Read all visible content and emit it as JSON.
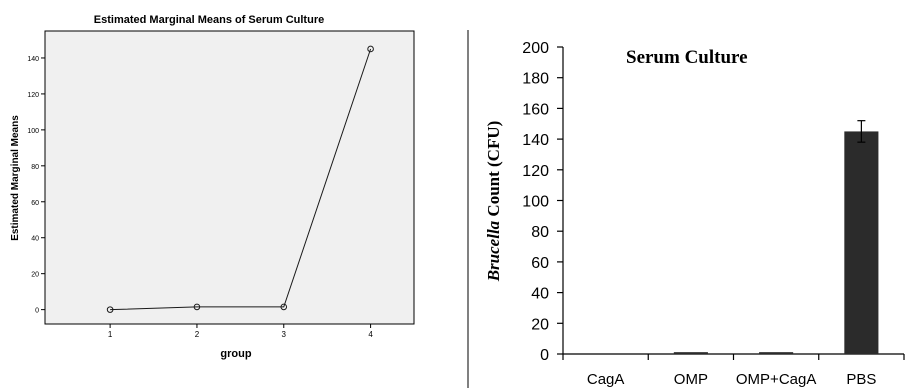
{
  "colors": {
    "left_plot_bg": "#f0f0f0",
    "left_line": "#1a1a1a",
    "right_bar": "#2b2b2b",
    "axis": "#000000"
  },
  "chart_data": [
    {
      "type": "line",
      "title": "Estimated Marginal Means of Serum Culture",
      "xlabel": "group",
      "ylabel": "Estimated Marginal Means",
      "x": [
        1,
        2,
        3,
        4
      ],
      "x_tick_labels": [
        "1",
        "2",
        "3",
        "4"
      ],
      "xlim": [
        0.25,
        4.5
      ],
      "values": [
        0,
        1.5,
        1.5,
        145
      ],
      "ylim": [
        -8,
        155
      ],
      "y_ticks": [
        0,
        20,
        40,
        60,
        80,
        100,
        120,
        140
      ],
      "y_tick_labels": [
        "0",
        "20",
        "40",
        "60",
        "80",
        "100",
        "120",
        "140"
      ],
      "marker": "open-circle",
      "grid": false
    },
    {
      "type": "bar",
      "title": "Serum Culture",
      "ylabel_italic": "Brucella",
      "ylabel_rest": " Count (CFU)",
      "categories": [
        "CagA",
        "OMP",
        "OMP+CagA",
        "PBS"
      ],
      "values": [
        0,
        1.2,
        1.2,
        145
      ],
      "error": [
        0,
        0,
        0,
        7
      ],
      "ylim": [
        0,
        200
      ],
      "y_ticks": [
        0,
        20,
        40,
        60,
        80,
        100,
        120,
        140,
        160,
        180,
        200
      ],
      "y_tick_labels": [
        "0",
        "20",
        "40",
        "60",
        "80",
        "100",
        "120",
        "140",
        "160",
        "180",
        "200"
      ],
      "grid": false,
      "title_position": "top-left inside plot"
    }
  ]
}
